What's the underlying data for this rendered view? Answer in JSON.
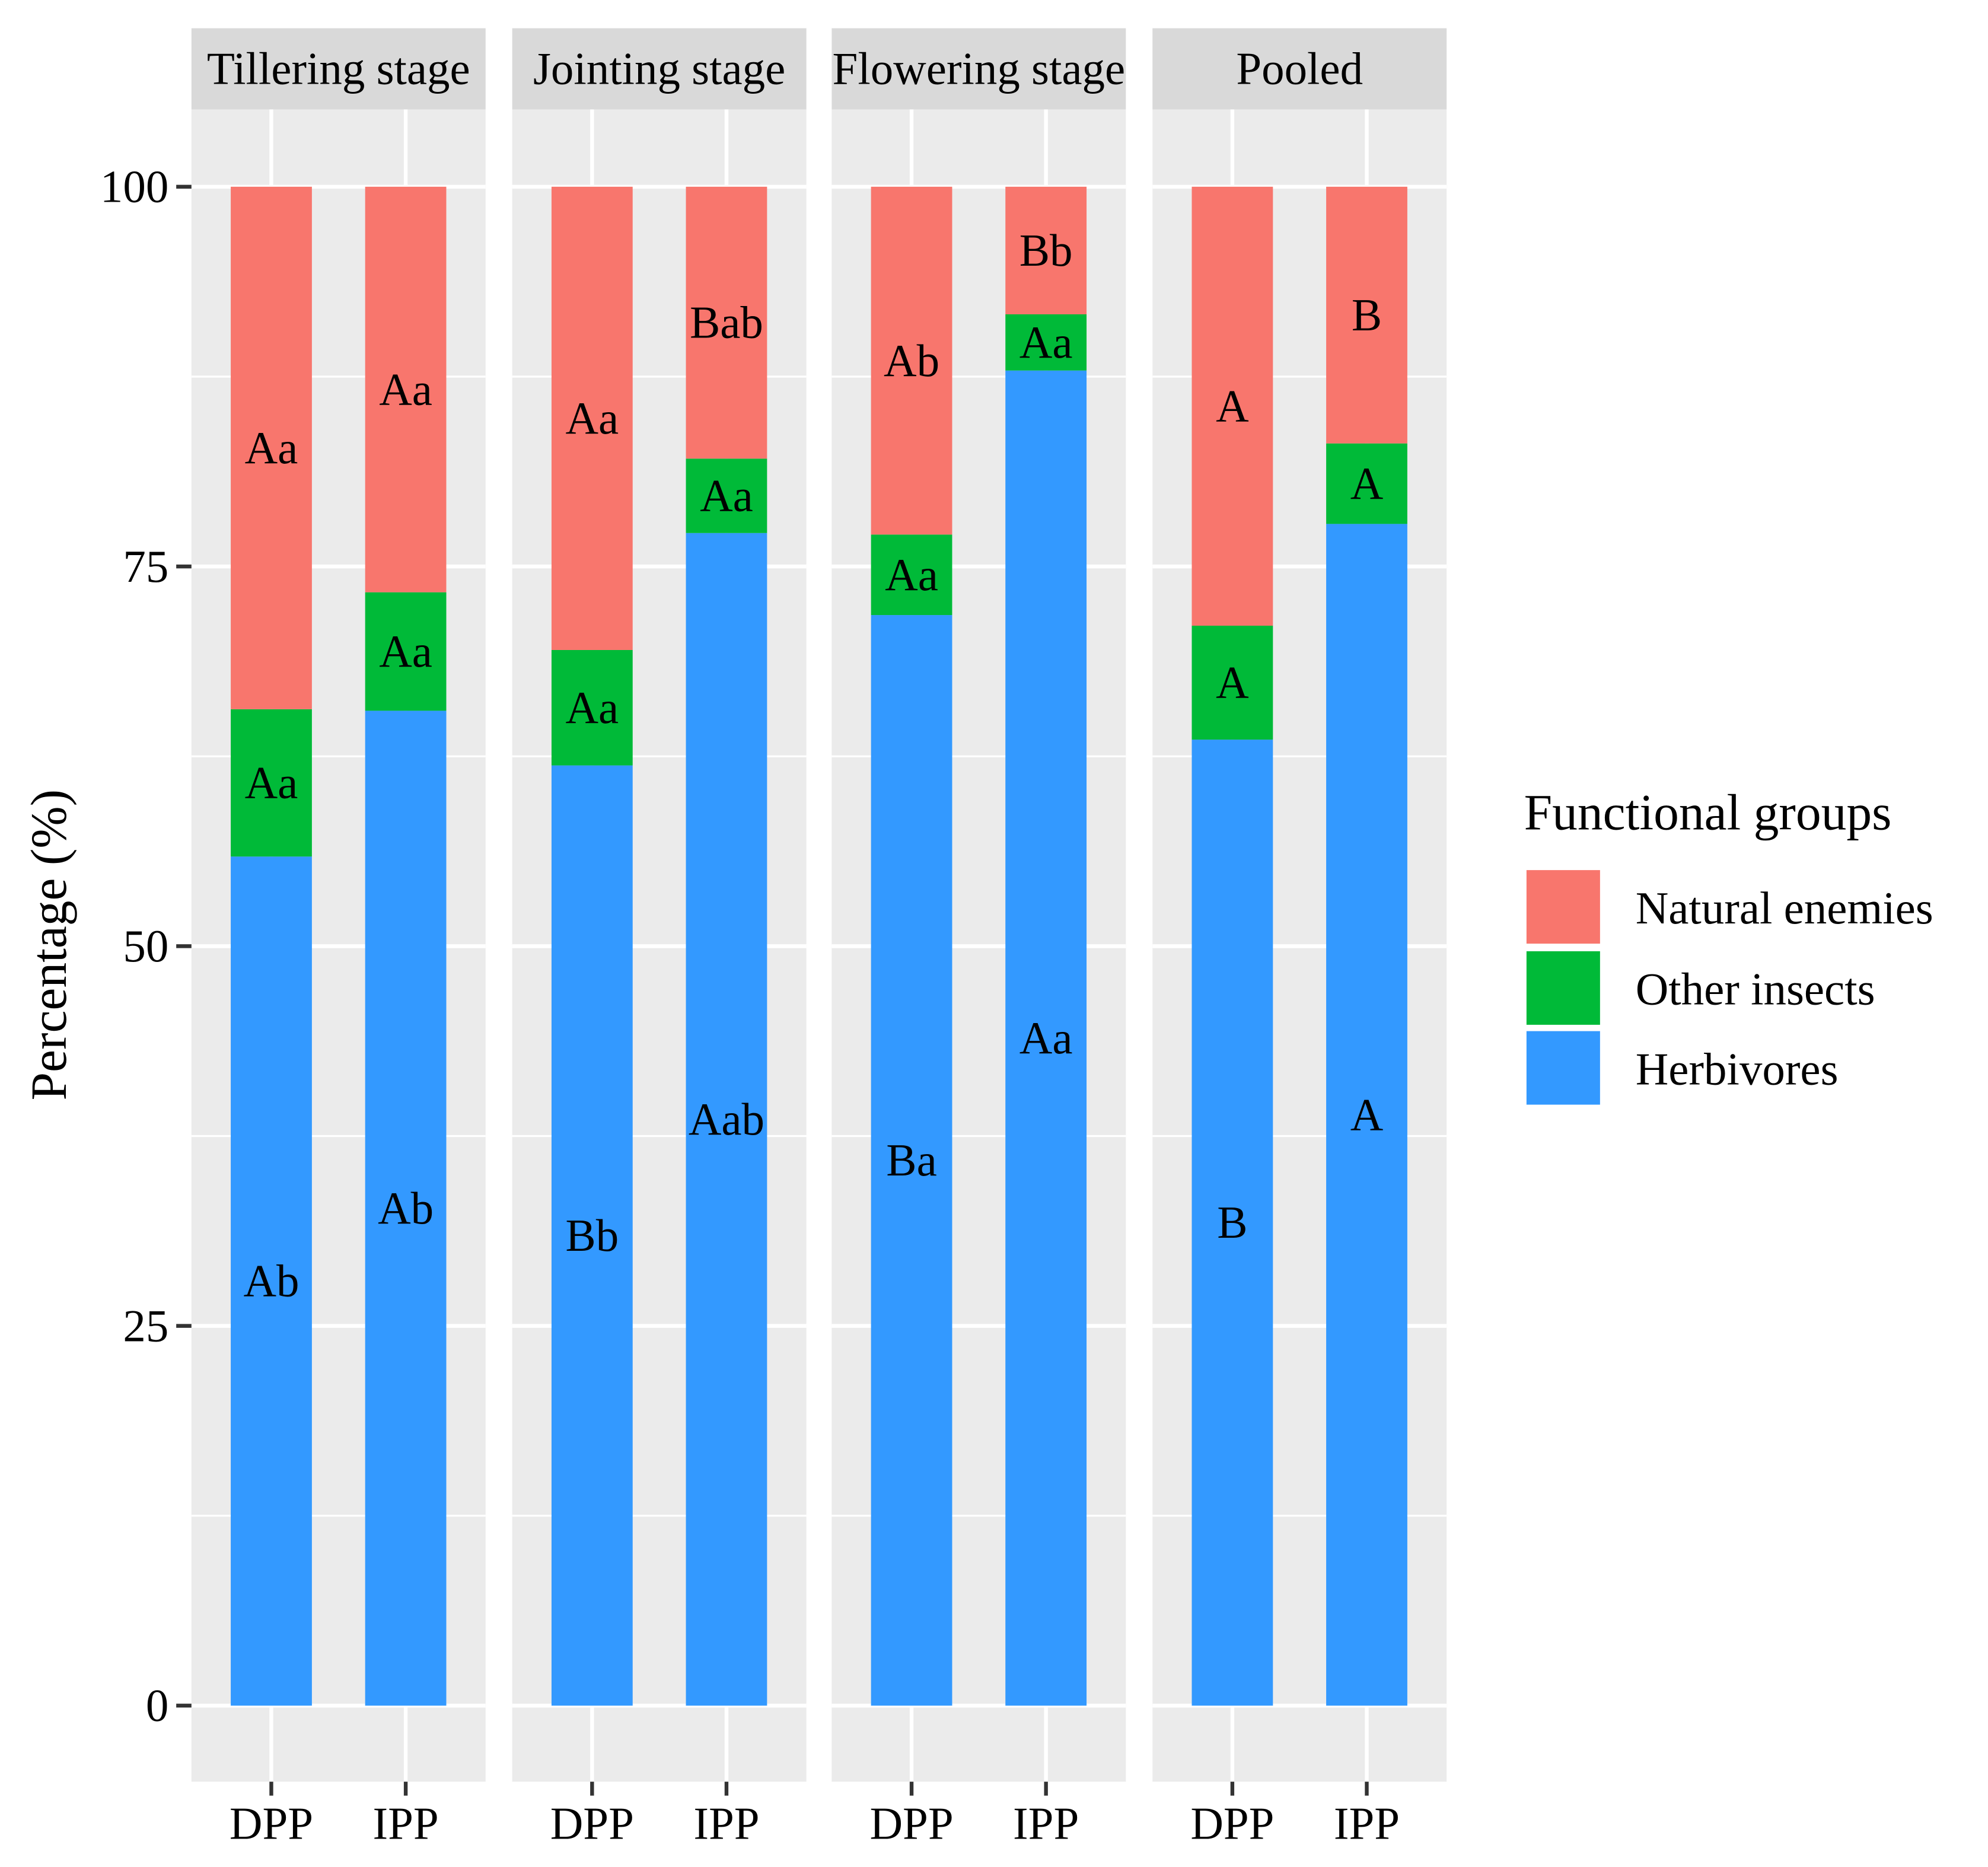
{
  "chart_data": {
    "type": "bar",
    "stacked": true,
    "ylabel": "Percentage (%)",
    "xlabel": "",
    "ylim": [
      0,
      100
    ],
    "yticks": [
      "0",
      "25",
      "50",
      "75",
      "100"
    ],
    "grid": true,
    "facets": [
      "Tillering stage",
      "Jointing stage",
      "Flowering stage",
      "Pooled"
    ],
    "categories": [
      "DPP",
      "IPP"
    ],
    "legend": {
      "title": "Functional groups",
      "placement": "right",
      "entries": [
        "Natural enemies",
        "Other insects",
        "Herbivores"
      ]
    },
    "colors": {
      "Herbivores": "#3399FF",
      "Other insects": "#00BA38",
      "Natural enemies": "#F8766D"
    },
    "series": [
      {
        "name": "Herbivores",
        "values": [
          [
            55.9,
            65.5
          ],
          [
            61.9,
            77.2
          ],
          [
            71.8,
            87.9
          ],
          [
            63.6,
            77.8
          ]
        ],
        "labels": [
          [
            "Ab",
            "Ab"
          ],
          [
            "Bb",
            "Aab"
          ],
          [
            "Ba",
            "Aa"
          ],
          [
            "B",
            "A"
          ]
        ]
      },
      {
        "name": "Other insects",
        "values": [
          [
            9.7,
            7.8
          ],
          [
            7.6,
            4.9
          ],
          [
            5.3,
            3.7
          ],
          [
            7.5,
            5.3
          ]
        ],
        "labels": [
          [
            "Aa",
            "Aa"
          ],
          [
            "Aa",
            "Aa"
          ],
          [
            "Aa",
            "Aa"
          ],
          [
            "A",
            "A"
          ]
        ]
      },
      {
        "name": "Natural enemies",
        "values": [
          [
            34.4,
            26.7
          ],
          [
            30.5,
            17.9
          ],
          [
            22.9,
            8.4
          ],
          [
            28.9,
            16.9
          ]
        ],
        "labels": [
          [
            "Aa",
            "Aa"
          ],
          [
            "Aa",
            "Bab"
          ],
          [
            "Ab",
            "Bb"
          ],
          [
            "A",
            "B"
          ]
        ]
      }
    ]
  }
}
